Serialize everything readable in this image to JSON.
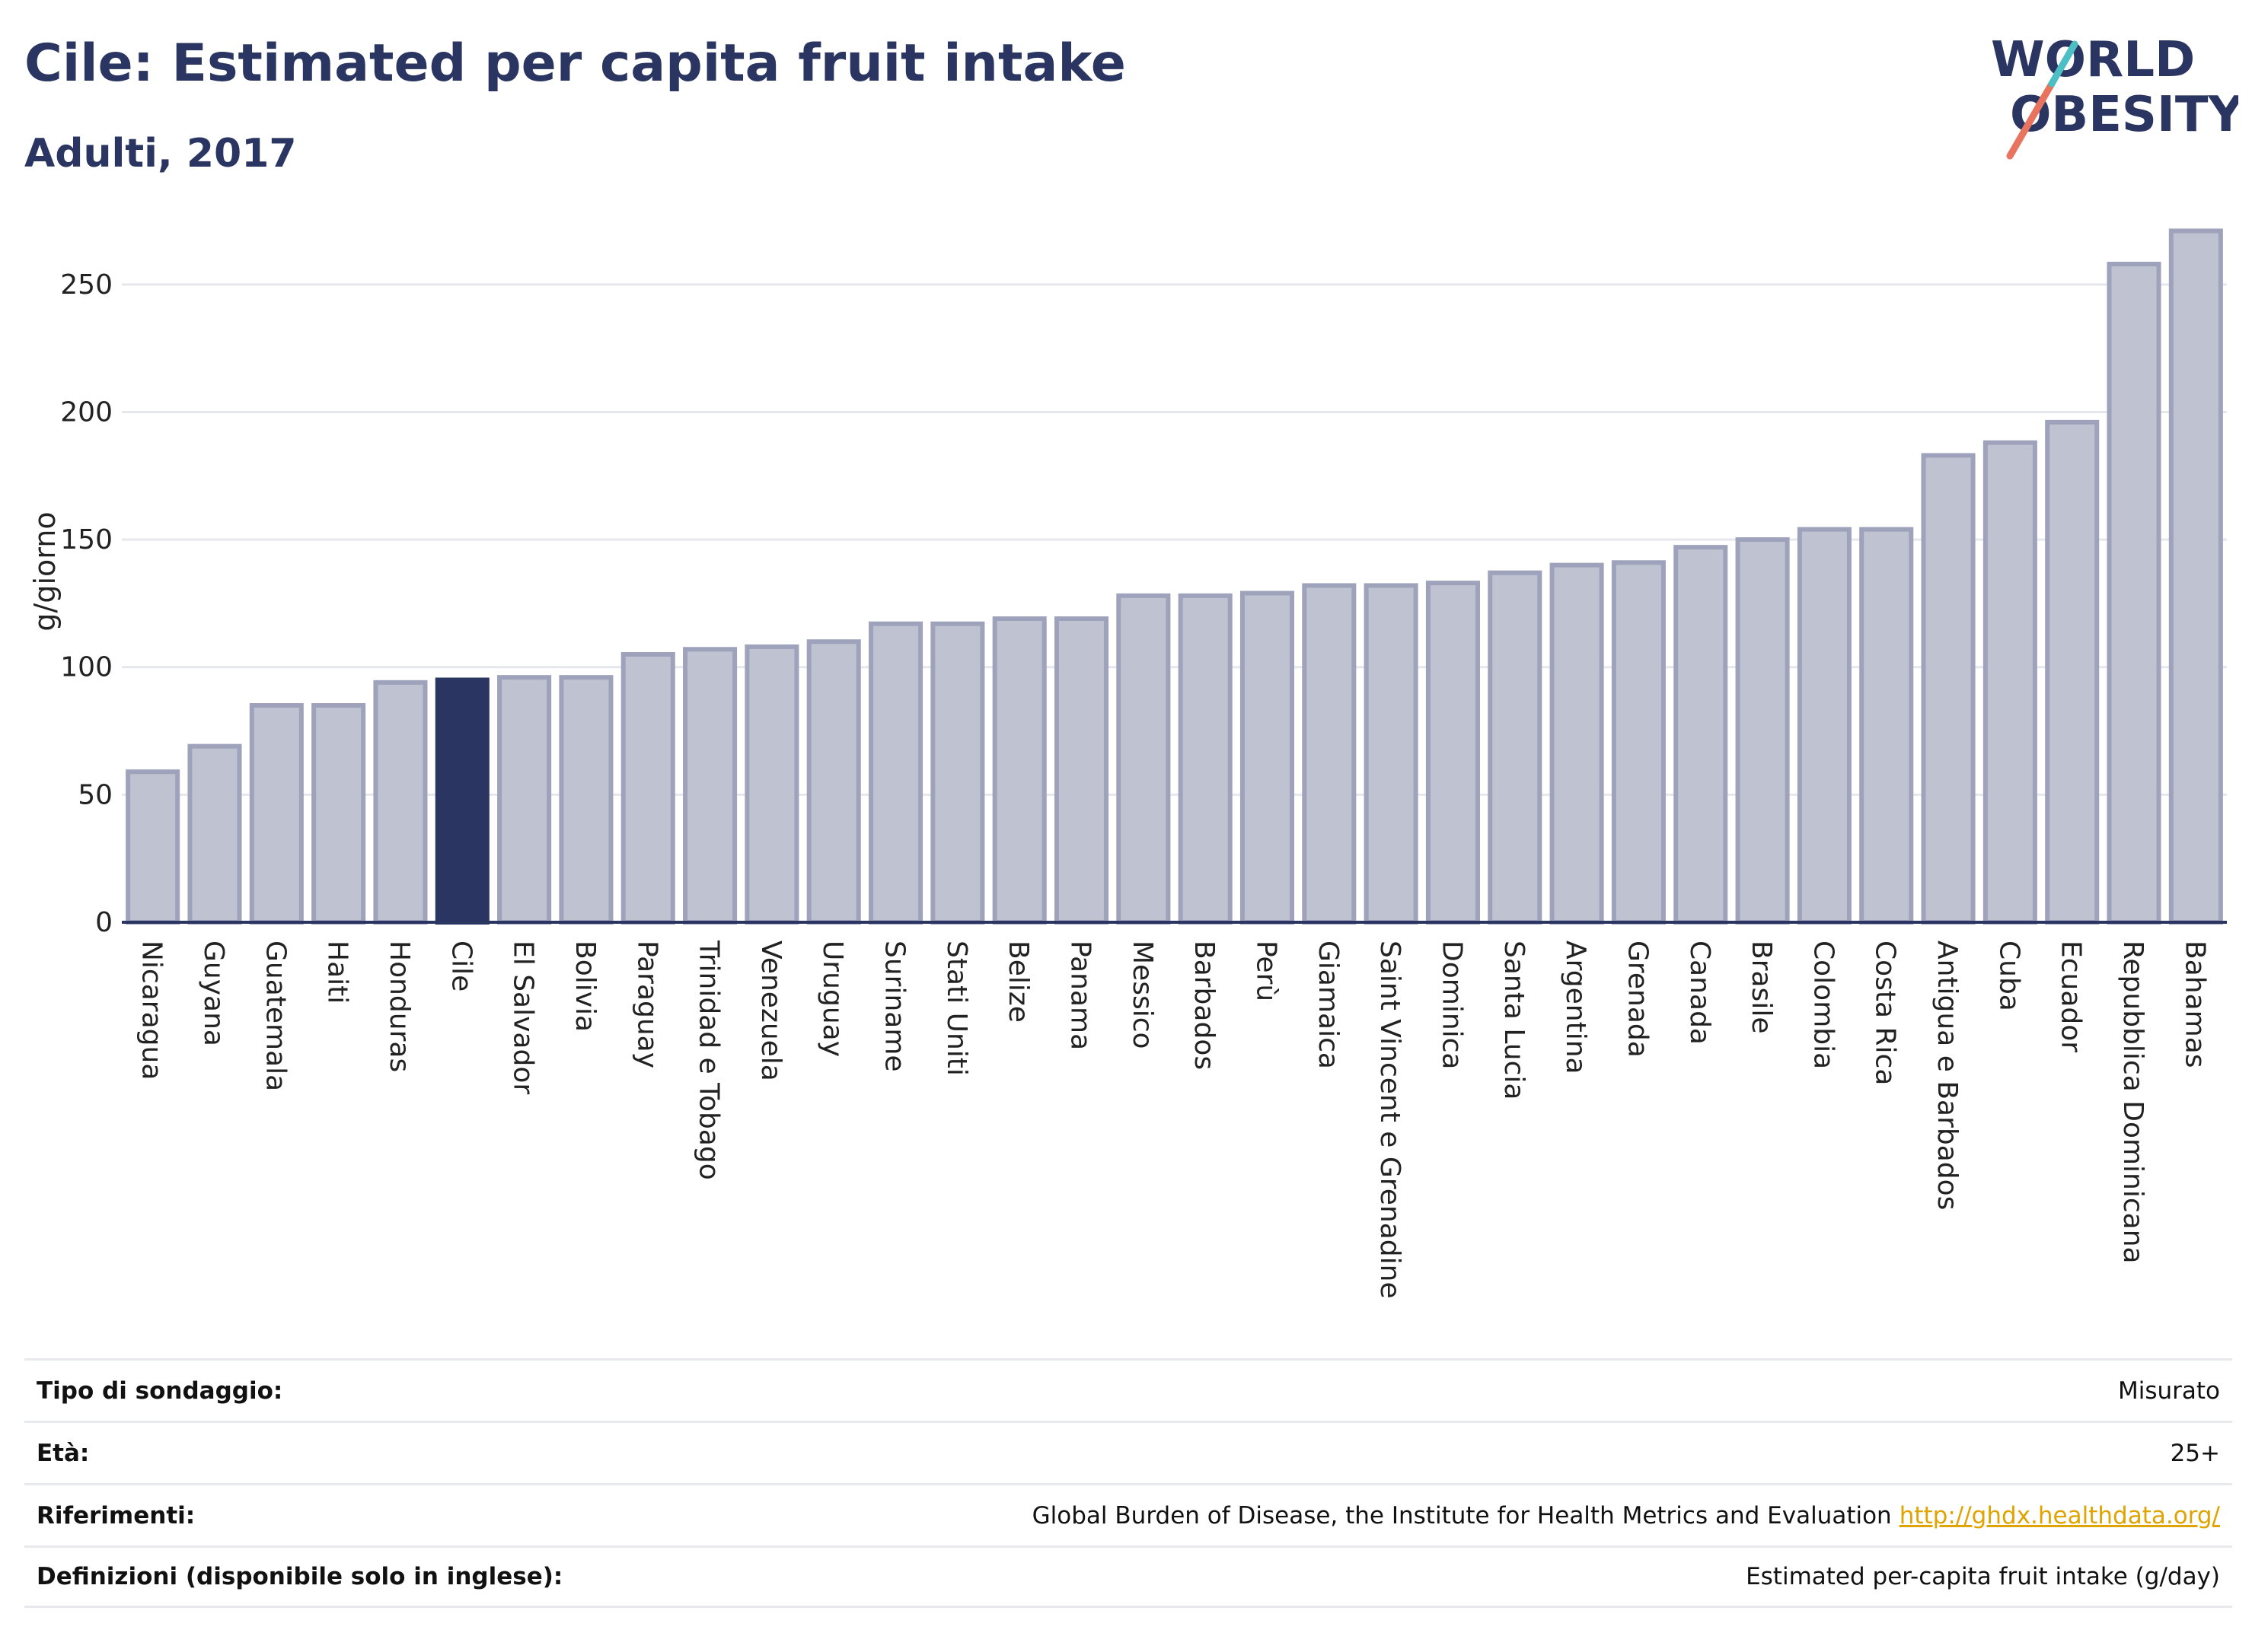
{
  "header": {
    "title": "Cile: Estimated per capita fruit intake",
    "subtitle": "Adulti, 2017"
  },
  "logo": {
    "line1": "WORLD",
    "line2": "OBESITY",
    "accent_colors": [
      "#e8735f",
      "#4bbfc4"
    ]
  },
  "chart_data": {
    "type": "bar",
    "title": "Cile: Estimated per capita fruit intake",
    "subtitle": "Adulti, 2017",
    "xlabel": "",
    "ylabel": "g/giorno",
    "ylim": [
      0,
      275
    ],
    "yticks": [
      0,
      50,
      100,
      150,
      200,
      250
    ],
    "grid": true,
    "highlight": "Cile",
    "colors": {
      "bar": "#bfc2d0",
      "bar_border": "#9ea3bb",
      "highlight": "#2a3561",
      "grid": "#e6e7ec",
      "axis": "#2a3561"
    },
    "categories": [
      "Nicaragua",
      "Guyana",
      "Guatemala",
      "Haiti",
      "Honduras",
      "Cile",
      "El Salvador",
      "Bolivia",
      "Paraguay",
      "Trinidad e Tobago",
      "Venezuela",
      "Uruguay",
      "Suriname",
      "Stati Uniti",
      "Belize",
      "Panama",
      "Messico",
      "Barbados",
      "Perù",
      "Giamaica",
      "Saint Vincent e Grenadine",
      "Dominica",
      "Santa Lucia",
      "Argentina",
      "Grenada",
      "Canada",
      "Brasile",
      "Colombia",
      "Costa Rica",
      "Antigua e Barbados",
      "Cuba",
      "Ecuador",
      "Repubblica Dominicana",
      "Bahamas"
    ],
    "values": [
      59,
      69,
      85,
      85,
      94,
      95,
      96,
      96,
      105,
      107,
      108,
      110,
      117,
      117,
      119,
      119,
      128,
      128,
      129,
      132,
      132,
      133,
      137,
      140,
      141,
      147,
      150,
      154,
      154,
      183,
      188,
      196,
      258,
      271
    ]
  },
  "meta": {
    "rows": [
      {
        "label": "Tipo di sondaggio:",
        "value": "Misurato"
      },
      {
        "label": "Età:",
        "value": "25+"
      },
      {
        "label": "Riferimenti:",
        "value": "Global Burden of Disease, the Institute for Health Metrics and Evaluation",
        "link": "http://ghdx.healthdata.org/"
      },
      {
        "label": "Definizioni (disponibile solo in inglese):",
        "value": "Estimated per-capita fruit intake (g/day)"
      }
    ]
  }
}
